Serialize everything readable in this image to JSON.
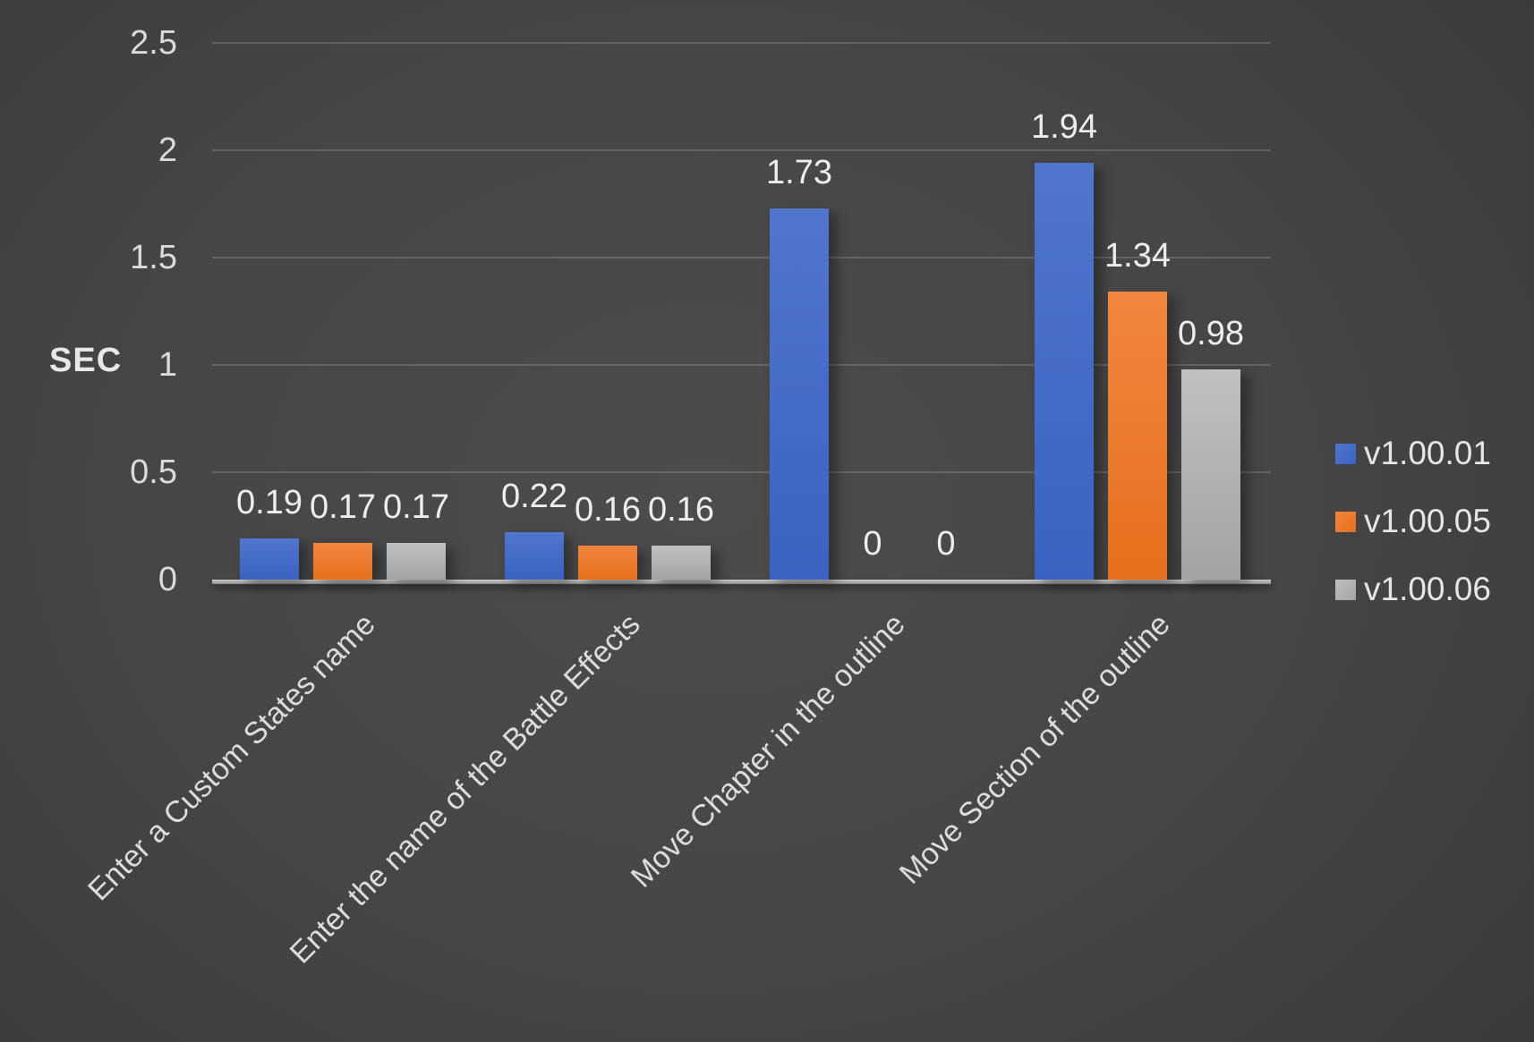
{
  "chart_data": {
    "type": "bar",
    "title": "",
    "ylabel": "SEC",
    "xlabel": "",
    "ylim": [
      0,
      2.5
    ],
    "y_ticks": [
      "0",
      "0.5",
      "1",
      "1.5",
      "2",
      "2.5"
    ],
    "grid": true,
    "legend_position": "right",
    "categories": [
      "Enter a Custom States name",
      "Enter the name of the Battle Effects",
      "Move Chapter in the outline",
      "Move Section of the outline"
    ],
    "series": [
      {
        "name": "v1.00.01",
        "color": "#4472C4",
        "gradient": [
          "#5076CE",
          "#3B62C2"
        ],
        "values": [
          0.19,
          0.22,
          1.73,
          1.94
        ]
      },
      {
        "name": "v1.00.05",
        "color": "#ED7D31",
        "gradient": [
          "#F1863E",
          "#E56F1C"
        ],
        "values": [
          0.17,
          0.16,
          0,
          1.34
        ]
      },
      {
        "name": "v1.00.06",
        "color": "#A5A5A5",
        "gradient": [
          "#C0C0C0",
          "#A3A3A3"
        ],
        "values": [
          0.17,
          0.16,
          0,
          0.98
        ]
      }
    ],
    "data_labels": [
      [
        "0.19",
        "0.17",
        "0.17"
      ],
      [
        "0.22",
        "0.16",
        "0.16"
      ],
      [
        "1.73",
        "0",
        "0"
      ],
      [
        "1.94",
        "1.34",
        "0.98"
      ]
    ]
  }
}
